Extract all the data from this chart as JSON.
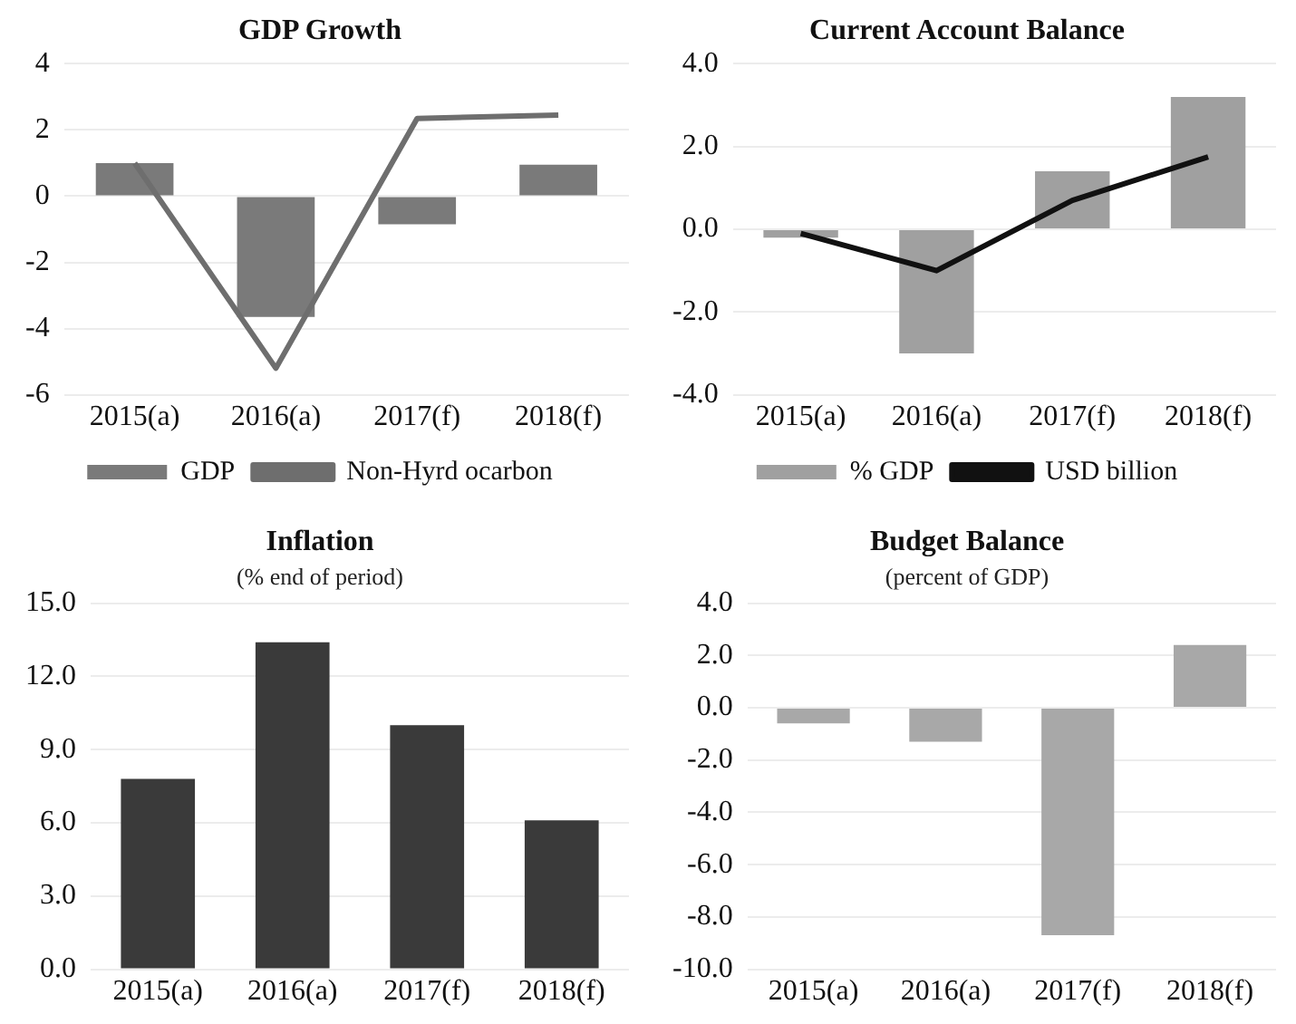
{
  "chart_data": [
    {
      "type": "bar",
      "title": "GDP Growth",
      "categories": [
        "2015(a)",
        "2016(a)",
        "2017(f)",
        "2018(f)"
      ],
      "series": [
        {
          "name": "GDP",
          "color": "#7a7a7a",
          "values": [
            1.0,
            -3.65,
            -0.85,
            0.95
          ]
        },
        {
          "name": "Non-Hyrd ocarbon",
          "type": "line",
          "color": "#6e6e6e",
          "values": [
            1.0,
            -5.2,
            2.35,
            2.45
          ]
        }
      ],
      "ylim": [
        -6,
        4
      ],
      "yticks": [
        -6,
        -4,
        -2,
        0,
        2,
        4
      ],
      "grid": "y",
      "legend": "bottom"
    },
    {
      "type": "bar",
      "title": "Current Account Balance",
      "categories": [
        "2015(a)",
        "2016(a)",
        "2017(f)",
        "2018(f)"
      ],
      "series": [
        {
          "name": "% GDP",
          "color": "#a0a0a0",
          "values": [
            -0.2,
            -3.0,
            1.4,
            3.2
          ]
        },
        {
          "name": "USD billion",
          "type": "line",
          "color": "#111111",
          "values": [
            -0.1,
            -1.0,
            0.7,
            1.75
          ]
        }
      ],
      "ylim": [
        -4,
        4
      ],
      "yticks": [
        {
          "value": -4,
          "label": "-4.0"
        },
        {
          "value": -2,
          "label": "-2.0"
        },
        {
          "value": 0,
          "label": "0.0"
        },
        {
          "value": 2,
          "label": "2.0"
        },
        {
          "value": 4,
          "label": "4.0"
        }
      ],
      "grid": "y",
      "legend": "bottom"
    },
    {
      "type": "bar",
      "title": "Inflation",
      "subtitle": "(% end of period)",
      "categories": [
        "2015(a)",
        "2016(a)",
        "2017(f)",
        "2018(f)"
      ],
      "series": [
        {
          "color": "#3a3a3a",
          "values": [
            7.8,
            13.4,
            10.0,
            6.1
          ]
        }
      ],
      "ylim": [
        0,
        15
      ],
      "yticks": [
        {
          "value": 0,
          "label": "0.0"
        },
        {
          "value": 3,
          "label": "3.0"
        },
        {
          "value": 6,
          "label": "6.0"
        },
        {
          "value": 9,
          "label": "9.0"
        },
        {
          "value": 12,
          "label": "12.0"
        },
        {
          "value": 15,
          "label": "15.0"
        }
      ],
      "grid": "y"
    },
    {
      "type": "bar",
      "title": "Budget Balance",
      "subtitle": "(percent of GDP)",
      "categories": [
        "2015(a)",
        "2016(a)",
        "2017(f)",
        "2018(f)"
      ],
      "series": [
        {
          "color": "#a8a8a8",
          "values": [
            -0.6,
            -1.3,
            -8.7,
            2.4
          ]
        }
      ],
      "ylim": [
        -10,
        4
      ],
      "yticks": [
        {
          "value": -10,
          "label": "-10.0"
        },
        {
          "value": -8,
          "label": "-8.0"
        },
        {
          "value": -6,
          "label": "-6.0"
        },
        {
          "value": -4,
          "label": "-4.0"
        },
        {
          "value": -2,
          "label": "-2.0"
        },
        {
          "value": 0,
          "label": "0.0"
        },
        {
          "value": 2,
          "label": "2.0"
        },
        {
          "value": 4,
          "label": "4.0"
        }
      ],
      "grid": "y"
    }
  ]
}
